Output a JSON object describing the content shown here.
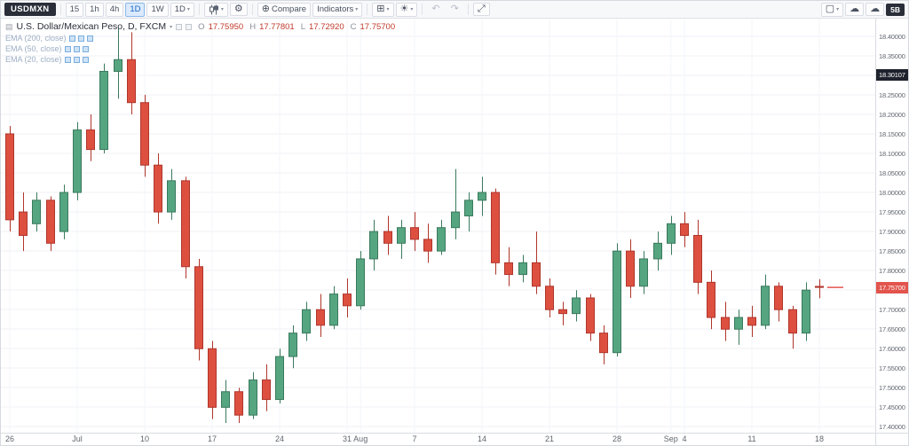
{
  "icons": {
    "caret": "▾",
    "gear": "⚙",
    "compare": "⊕",
    "cloud": "☁",
    "undo": "↶",
    "redo": "↷",
    "fullscreen": "⤢",
    "templates": "⊞",
    "themes": "☀",
    "layout": "▢",
    "title_icon": "▤"
  },
  "toolbar": {
    "symbol": "USDMXN",
    "intervals": [
      "15",
      "1h",
      "4h",
      "1D",
      "1W"
    ],
    "active_interval": "1D",
    "interval_dropdown": "1D",
    "compare_label": "Compare",
    "indicators_label": "Indicators",
    "right_button_label": "5B"
  },
  "legend": {
    "title": "U.S. Dollar/Mexican Peso, D, FXCM",
    "ohlc": {
      "open_label": "O",
      "open": "17.75950",
      "high_label": "H",
      "high": "17.77801",
      "low_label": "L",
      "low": "17.72920",
      "close_label": "C",
      "close": "17.75700"
    },
    "indicators": [
      {
        "label": "EMA (200, close)"
      },
      {
        "label": "EMA (50, close)"
      },
      {
        "label": "EMA (20, close)"
      }
    ]
  },
  "price_axis": {
    "min": 17.4,
    "max": 18.4,
    "step": 0.05,
    "decimals": 5,
    "tags": [
      {
        "value": "18.30107",
        "bg": "#1e222d"
      },
      {
        "value": "17.75700",
        "bg": "#e2544c"
      }
    ]
  },
  "time_axis": {
    "labels": [
      {
        "index": 0,
        "text": "26"
      },
      {
        "index": 5,
        "text": "Jul"
      },
      {
        "index": 10,
        "text": "10"
      },
      {
        "index": 15,
        "text": "17"
      },
      {
        "index": 20,
        "text": "24"
      },
      {
        "index": 25,
        "text": "31"
      },
      {
        "index": 26,
        "text": "Aug"
      },
      {
        "index": 30,
        "text": "7"
      },
      {
        "index": 35,
        "text": "14"
      },
      {
        "index": 40,
        "text": "21"
      },
      {
        "index": 45,
        "text": "28"
      },
      {
        "index": 49,
        "text": "Sep"
      },
      {
        "index": 50,
        "text": "4"
      },
      {
        "index": 55,
        "text": "11"
      },
      {
        "index": 60,
        "text": "18"
      }
    ]
  },
  "chart_data": {
    "type": "candlestick",
    "title": "U.S. Dollar/Mexican Peso",
    "symbol": "USDMXN",
    "interval": "D",
    "exchange": "FXCM",
    "ylim": [
      17.4,
      18.4
    ],
    "grid": true,
    "last_price": 17.757,
    "colors": {
      "up": "#55a581",
      "up_border": "#3a7a5d",
      "down": "#dd5040",
      "down_border": "#b0352b",
      "current": "#e2544c"
    },
    "candles": [
      {
        "d": "Jun 26",
        "o": 18.15,
        "h": 18.17,
        "l": 17.9,
        "c": 17.93
      },
      {
        "d": "Jun 27",
        "o": 17.95,
        "h": 18.0,
        "l": 17.85,
        "c": 17.89
      },
      {
        "d": "Jun 28",
        "o": 17.92,
        "h": 18.0,
        "l": 17.9,
        "c": 17.98
      },
      {
        "d": "Jun 29",
        "o": 17.98,
        "h": 17.99,
        "l": 17.85,
        "c": 17.87
      },
      {
        "d": "Jun 30",
        "o": 17.9,
        "h": 18.02,
        "l": 17.88,
        "c": 18.0
      },
      {
        "d": "Jul 3",
        "o": 18.0,
        "h": 18.18,
        "l": 17.98,
        "c": 18.16
      },
      {
        "d": "Jul 4",
        "o": 18.16,
        "h": 18.2,
        "l": 18.08,
        "c": 18.11
      },
      {
        "d": "Jul 5",
        "o": 18.11,
        "h": 18.33,
        "l": 18.1,
        "c": 18.31
      },
      {
        "d": "Jul 6",
        "o": 18.31,
        "h": 18.42,
        "l": 18.24,
        "c": 18.34
      },
      {
        "d": "Jul 7",
        "o": 18.34,
        "h": 18.41,
        "l": 18.2,
        "c": 18.23
      },
      {
        "d": "Jul 10",
        "o": 18.23,
        "h": 18.25,
        "l": 18.04,
        "c": 18.07
      },
      {
        "d": "Jul 11",
        "o": 18.07,
        "h": 18.1,
        "l": 17.92,
        "c": 17.95
      },
      {
        "d": "Jul 12",
        "o": 17.95,
        "h": 18.06,
        "l": 17.93,
        "c": 18.03
      },
      {
        "d": "Jul 13",
        "o": 18.03,
        "h": 18.04,
        "l": 17.78,
        "c": 17.81
      },
      {
        "d": "Jul 14",
        "o": 17.81,
        "h": 17.83,
        "l": 17.57,
        "c": 17.6
      },
      {
        "d": "Jul 17",
        "o": 17.6,
        "h": 17.62,
        "l": 17.42,
        "c": 17.45
      },
      {
        "d": "Jul 18",
        "o": 17.45,
        "h": 17.52,
        "l": 17.41,
        "c": 17.49
      },
      {
        "d": "Jul 19",
        "o": 17.49,
        "h": 17.5,
        "l": 17.41,
        "c": 17.43
      },
      {
        "d": "Jul 20",
        "o": 17.43,
        "h": 17.54,
        "l": 17.42,
        "c": 17.52
      },
      {
        "d": "Jul 21",
        "o": 17.52,
        "h": 17.56,
        "l": 17.44,
        "c": 17.47
      },
      {
        "d": "Jul 24",
        "o": 17.47,
        "h": 17.6,
        "l": 17.46,
        "c": 17.58
      },
      {
        "d": "Jul 25",
        "o": 17.58,
        "h": 17.66,
        "l": 17.55,
        "c": 17.64
      },
      {
        "d": "Jul 26",
        "o": 17.64,
        "h": 17.72,
        "l": 17.62,
        "c": 17.7
      },
      {
        "d": "Jul 27",
        "o": 17.7,
        "h": 17.74,
        "l": 17.63,
        "c": 17.66
      },
      {
        "d": "Jul 28",
        "o": 17.66,
        "h": 17.76,
        "l": 17.65,
        "c": 17.74
      },
      {
        "d": "Jul 31",
        "o": 17.74,
        "h": 17.78,
        "l": 17.68,
        "c": 17.71
      },
      {
        "d": "Aug 1",
        "o": 17.71,
        "h": 17.85,
        "l": 17.7,
        "c": 17.83
      },
      {
        "d": "Aug 2",
        "o": 17.83,
        "h": 17.93,
        "l": 17.8,
        "c": 17.9
      },
      {
        "d": "Aug 3",
        "o": 17.9,
        "h": 17.94,
        "l": 17.84,
        "c": 17.87
      },
      {
        "d": "Aug 4",
        "o": 17.87,
        "h": 17.93,
        "l": 17.83,
        "c": 17.91
      },
      {
        "d": "Aug 7",
        "o": 17.91,
        "h": 17.95,
        "l": 17.85,
        "c": 17.88
      },
      {
        "d": "Aug 8",
        "o": 17.88,
        "h": 17.92,
        "l": 17.82,
        "c": 17.85
      },
      {
        "d": "Aug 9",
        "o": 17.85,
        "h": 17.93,
        "l": 17.84,
        "c": 17.91
      },
      {
        "d": "Aug 10",
        "o": 17.91,
        "h": 18.06,
        "l": 17.88,
        "c": 17.95
      },
      {
        "d": "Aug 11",
        "o": 17.94,
        "h": 18.0,
        "l": 17.9,
        "c": 17.98
      },
      {
        "d": "Aug 14",
        "o": 17.98,
        "h": 18.04,
        "l": 17.94,
        "c": 18.0
      },
      {
        "d": "Aug 15",
        "o": 18.0,
        "h": 18.01,
        "l": 17.79,
        "c": 17.82
      },
      {
        "d": "Aug 16",
        "o": 17.82,
        "h": 17.86,
        "l": 17.76,
        "c": 17.79
      },
      {
        "d": "Aug 17",
        "o": 17.79,
        "h": 17.84,
        "l": 17.77,
        "c": 17.82
      },
      {
        "d": "Aug 18",
        "o": 17.82,
        "h": 17.9,
        "l": 17.74,
        "c": 17.76
      },
      {
        "d": "Aug 21",
        "o": 17.76,
        "h": 17.78,
        "l": 17.68,
        "c": 17.7
      },
      {
        "d": "Aug 22",
        "o": 17.7,
        "h": 17.72,
        "l": 17.66,
        "c": 17.69
      },
      {
        "d": "Aug 23",
        "o": 17.69,
        "h": 17.75,
        "l": 17.67,
        "c": 17.73
      },
      {
        "d": "Aug 24",
        "o": 17.73,
        "h": 17.74,
        "l": 17.62,
        "c": 17.64
      },
      {
        "d": "Aug 25",
        "o": 17.64,
        "h": 17.66,
        "l": 17.56,
        "c": 17.59
      },
      {
        "d": "Aug 28",
        "o": 17.59,
        "h": 17.87,
        "l": 17.58,
        "c": 17.85
      },
      {
        "d": "Aug 29",
        "o": 17.85,
        "h": 17.88,
        "l": 17.73,
        "c": 17.76
      },
      {
        "d": "Aug 30",
        "o": 17.76,
        "h": 17.85,
        "l": 17.74,
        "c": 17.83
      },
      {
        "d": "Aug 31",
        "o": 17.83,
        "h": 17.9,
        "l": 17.8,
        "c": 17.87
      },
      {
        "d": "Sep 1",
        "o": 17.87,
        "h": 17.94,
        "l": 17.84,
        "c": 17.92
      },
      {
        "d": "Sep 4",
        "o": 17.92,
        "h": 17.95,
        "l": 17.86,
        "c": 17.89
      },
      {
        "d": "Sep 5",
        "o": 17.89,
        "h": 17.93,
        "l": 17.74,
        "c": 17.77
      },
      {
        "d": "Sep 6",
        "o": 17.77,
        "h": 17.8,
        "l": 17.65,
        "c": 17.68
      },
      {
        "d": "Sep 7",
        "o": 17.68,
        "h": 17.72,
        "l": 17.62,
        "c": 17.65
      },
      {
        "d": "Sep 8",
        "o": 17.65,
        "h": 17.7,
        "l": 17.61,
        "c": 17.68
      },
      {
        "d": "Sep 11",
        "o": 17.68,
        "h": 17.71,
        "l": 17.63,
        "c": 17.66
      },
      {
        "d": "Sep 12",
        "o": 17.66,
        "h": 17.79,
        "l": 17.65,
        "c": 17.76
      },
      {
        "d": "Sep 13",
        "o": 17.76,
        "h": 17.77,
        "l": 17.67,
        "c": 17.7
      },
      {
        "d": "Sep 14",
        "o": 17.7,
        "h": 17.71,
        "l": 17.6,
        "c": 17.64
      },
      {
        "d": "Sep 15",
        "o": 17.64,
        "h": 17.77,
        "l": 17.62,
        "c": 17.75
      },
      {
        "d": "Sep 18",
        "o": 17.7595,
        "h": 17.77801,
        "l": 17.7292,
        "c": 17.757
      }
    ]
  }
}
